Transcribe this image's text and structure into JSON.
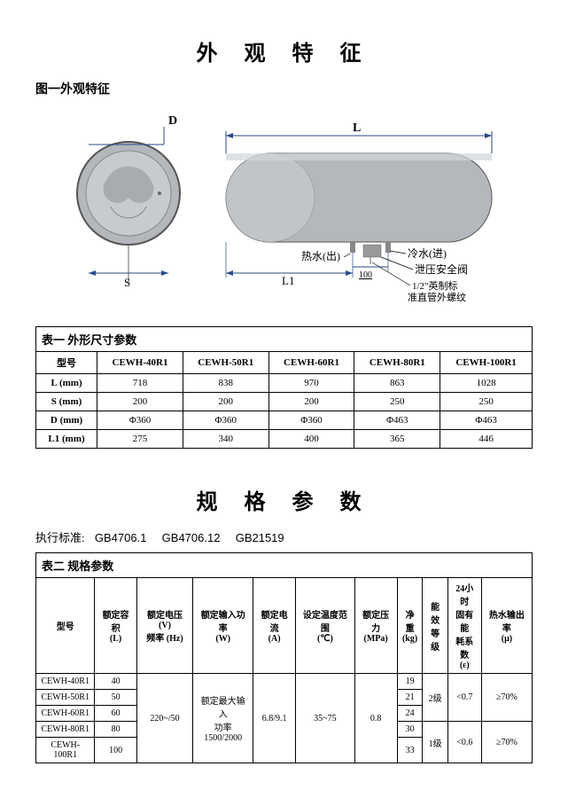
{
  "title1": "外 观 特 征",
  "fig_caption": "图一外观特征",
  "labels": {
    "D": "D",
    "S": "S",
    "L": "L",
    "L1": "L1",
    "hotwater": "热水(出)",
    "coldwater": "冷水(进)",
    "valve": "泄压安全阀",
    "thread": "1/2\"英制标\n准直管外螺纹",
    "dim100": "100"
  },
  "table1": {
    "caption": "表一  外形尺寸参数",
    "head_model": "型号",
    "models": [
      "CEWH-40R1",
      "CEWH-50R1",
      "CEWH-60R1",
      "CEWH-80R1",
      "CEWH-100R1"
    ],
    "rows": [
      {
        "label": "L (mm)",
        "v": [
          "718",
          "838",
          "970",
          "863",
          "1028"
        ]
      },
      {
        "label": "S (mm)",
        "v": [
          "200",
          "200",
          "200",
          "250",
          "250"
        ]
      },
      {
        "label": "D (mm)",
        "v": [
          "Φ360",
          "Φ360",
          "Φ360",
          "Φ463",
          "Φ463"
        ]
      },
      {
        "label": "L1 (mm)",
        "v": [
          "275",
          "340",
          "400",
          "365",
          "446"
        ]
      }
    ]
  },
  "title2": "规 格 参 数",
  "standards_label": "执行标准:",
  "standards": [
    "GB4706.1",
    "GB4706.12",
    "GB21519"
  ],
  "table2": {
    "caption": "表二  规格参数",
    "head": [
      "型号",
      "额定容积\n(L)",
      "额定电压 (V)\n频率 (Hz)",
      "额定输入功率\n(W)",
      "额定电流\n(A)",
      "设定温度范围\n(℃)",
      "额定压力\n(MPa)",
      "净重\n(kg)",
      "能效\n等级",
      "24小时\n固有能\n耗系数\n(ε)",
      "热水输出率\n(μ)"
    ],
    "models": [
      "CEWH-40R1",
      "CEWH-50R1",
      "CEWH-60R1",
      "CEWH-80R1",
      "CEWH-100R1"
    ],
    "capacity": [
      "40",
      "50",
      "60",
      "80",
      "100"
    ],
    "voltage": "220~/50",
    "power": "额定最大输入\n功率\n1500/2000",
    "current": "6.8/9.1",
    "temp": "35~75",
    "pressure": "0.8",
    "weight": [
      "19",
      "21",
      "24",
      "30",
      "33"
    ],
    "eff_grade": [
      "2级",
      "1级"
    ],
    "eps": [
      "<0.7",
      "<0.6"
    ],
    "mu": [
      "≥70%",
      "≥70%"
    ]
  },
  "colors": {
    "tank": "#b4b8bc",
    "tank_dark": "#8e9398",
    "outline": "#2a4a8a",
    "dim": "#2a4a8a"
  }
}
